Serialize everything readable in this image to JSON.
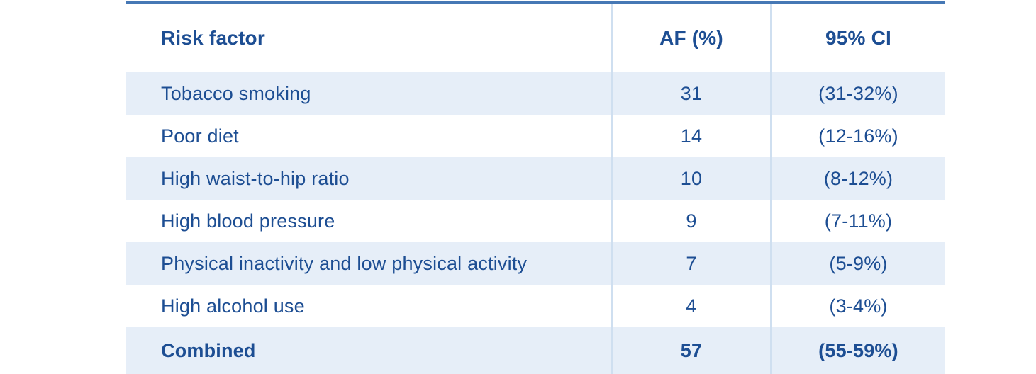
{
  "table": {
    "columns": [
      {
        "id": "risk_factor",
        "label": "Risk factor"
      },
      {
        "id": "af",
        "label": "AF (%)"
      },
      {
        "id": "ci",
        "label": "95% CI"
      }
    ],
    "rows": [
      {
        "risk_factor": "Tobacco smoking",
        "af": "31",
        "ci": "(31-32%)",
        "shaded": true,
        "bold": false
      },
      {
        "risk_factor": "Poor diet",
        "af": "14",
        "ci": "(12-16%)",
        "shaded": false,
        "bold": false
      },
      {
        "risk_factor": "High waist-to-hip ratio",
        "af": "10",
        "ci": "(8-12%)",
        "shaded": true,
        "bold": false
      },
      {
        "risk_factor": "High blood pressure",
        "af": "9",
        "ci": "(7-11%)",
        "shaded": false,
        "bold": false
      },
      {
        "risk_factor": "Physical inactivity and low physical activity",
        "af": "7",
        "ci": "(5-9%)",
        "shaded": true,
        "bold": false
      },
      {
        "risk_factor": "High alcohol use",
        "af": "4",
        "ci": "(3-4%)",
        "shaded": false,
        "bold": false
      },
      {
        "risk_factor": "Combined",
        "af": "57",
        "ci": "(55-59%)",
        "shaded": true,
        "bold": true
      }
    ]
  },
  "colors": {
    "text": "#1d4e93",
    "top_border": "#4678b5",
    "row_shade": "#e6eef8",
    "divider": "#cfdff0"
  },
  "chart_data": {
    "type": "table",
    "title": "",
    "columns": [
      "Risk factor",
      "AF (%)",
      "95% CI"
    ],
    "rows": [
      [
        "Tobacco smoking",
        31,
        "(31-32%)"
      ],
      [
        "Poor diet",
        14,
        "(12-16%)"
      ],
      [
        "High waist-to-hip ratio",
        10,
        "(8-12%)"
      ],
      [
        "High blood pressure",
        9,
        "(7-11%)"
      ],
      [
        "Physical inactivity and low physical activity",
        7,
        "(5-9%)"
      ],
      [
        "High alcohol use",
        4,
        "(3-4%)"
      ],
      [
        "Combined",
        57,
        "(55-59%)"
      ]
    ],
    "notes": "Striped table; Combined row bold; AF and CI columns separated by light vertical rules; dark blue top rule."
  }
}
